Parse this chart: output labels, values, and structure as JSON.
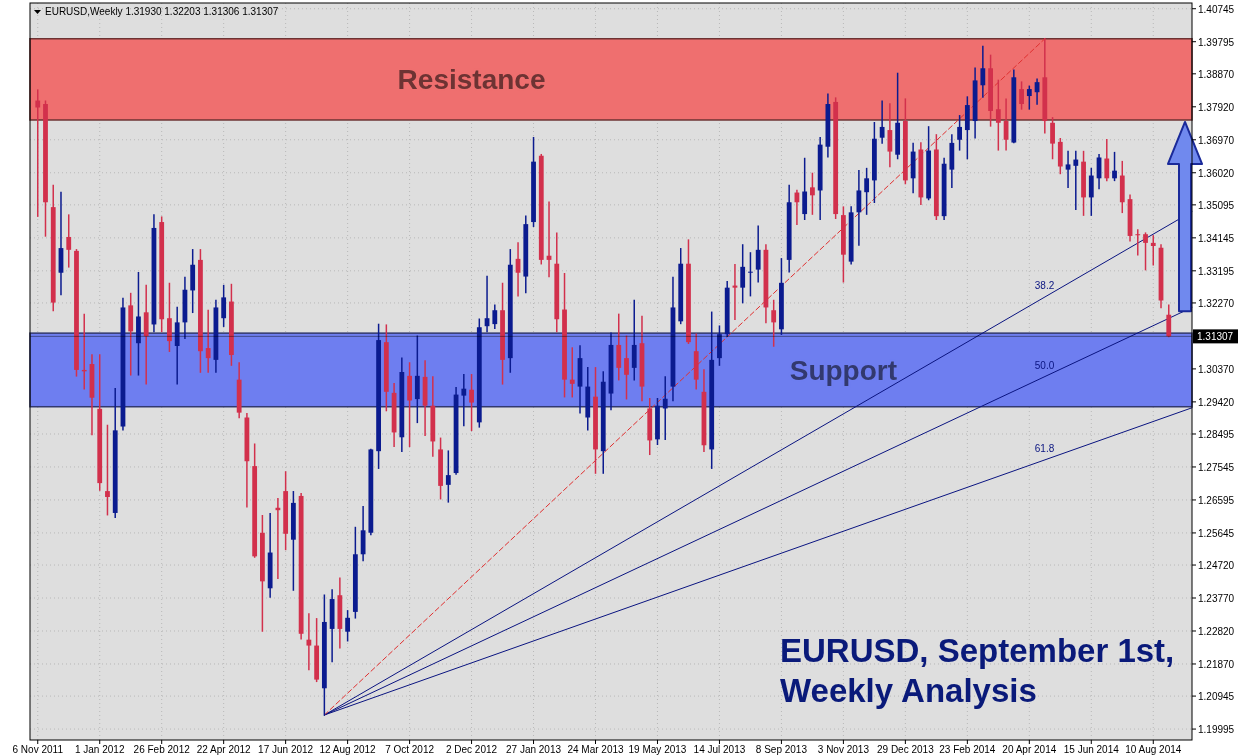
{
  "chart_data": {
    "type": "candlestick",
    "title": "EURUSD, September 1st, Weekly Analysis",
    "subtitle": "EURUSD,Weekly  1.31930 1.32203 1.31306 1.31307",
    "x": [
      "2011-11-06",
      "2011-11-13",
      "2011-11-20",
      "2011-11-27",
      "2011-12-04",
      "2011-12-11",
      "2011-12-18",
      "2011-12-25",
      "2012-01-01",
      "2012-01-08",
      "2012-01-15",
      "2012-01-22",
      "2012-01-29",
      "2012-02-05",
      "2012-02-12",
      "2012-02-19",
      "2012-02-26",
      "2012-03-04",
      "2012-03-11",
      "2012-03-18",
      "2012-03-25",
      "2012-04-01",
      "2012-04-08",
      "2012-04-15",
      "2012-04-22",
      "2012-04-29",
      "2012-05-06",
      "2012-05-13",
      "2012-05-20",
      "2012-05-27",
      "2012-06-03",
      "2012-06-10",
      "2012-06-17",
      "2012-06-24",
      "2012-07-01",
      "2012-07-08",
      "2012-07-15",
      "2012-07-22",
      "2012-07-29",
      "2012-08-05",
      "2012-08-12",
      "2012-08-19",
      "2012-08-26",
      "2012-09-02",
      "2012-09-09",
      "2012-09-16",
      "2012-09-23",
      "2012-09-30",
      "2012-10-07",
      "2012-10-14",
      "2012-10-21",
      "2012-10-28",
      "2012-11-04",
      "2012-11-11",
      "2012-11-18",
      "2012-11-25",
      "2012-12-02",
      "2012-12-09",
      "2012-12-16",
      "2012-12-23",
      "2012-12-30",
      "2013-01-06",
      "2013-01-13",
      "2013-01-20",
      "2013-01-27",
      "2013-02-03",
      "2013-02-10",
      "2013-02-17",
      "2013-02-24",
      "2013-03-03",
      "2013-03-10",
      "2013-03-17",
      "2013-03-24",
      "2013-03-31",
      "2013-04-07",
      "2013-04-14",
      "2013-04-21",
      "2013-04-28",
      "2013-05-05",
      "2013-05-12",
      "2013-05-19",
      "2013-05-26",
      "2013-06-02",
      "2013-06-09",
      "2013-06-16",
      "2013-06-23",
      "2013-06-30",
      "2013-07-07",
      "2013-07-14",
      "2013-07-21",
      "2013-07-28",
      "2013-08-04",
      "2013-08-11",
      "2013-08-18",
      "2013-08-25",
      "2013-09-01",
      "2013-09-08",
      "2013-09-15",
      "2013-09-22",
      "2013-09-29",
      "2013-10-06",
      "2013-10-13",
      "2013-10-20",
      "2013-10-27",
      "2013-11-03",
      "2013-11-10",
      "2013-11-17",
      "2013-11-24",
      "2013-12-01",
      "2013-12-08",
      "2013-12-15",
      "2013-12-22",
      "2013-12-29",
      "2014-01-05",
      "2014-01-12",
      "2014-01-19",
      "2014-01-26",
      "2014-02-02",
      "2014-02-09",
      "2014-02-16",
      "2014-02-23",
      "2014-03-02",
      "2014-03-09",
      "2014-03-16",
      "2014-03-23",
      "2014-03-30",
      "2014-04-06",
      "2014-04-13",
      "2014-04-20",
      "2014-04-27",
      "2014-05-04",
      "2014-05-11",
      "2014-05-18",
      "2014-05-25",
      "2014-06-01",
      "2014-06-08",
      "2014-06-15",
      "2014-06-22",
      "2014-06-29",
      "2014-07-06",
      "2014-07-13",
      "2014-07-20",
      "2014-07-27",
      "2014-08-03",
      "2014-08-10",
      "2014-08-17",
      "2014-08-24"
    ],
    "ohlc": [
      [
        1.381,
        1.384,
        1.3477,
        1.379
      ],
      [
        1.38,
        1.3808,
        1.342,
        1.3517
      ],
      [
        1.3503,
        1.3565,
        1.3205,
        1.3228
      ],
      [
        1.3314,
        1.3545,
        1.3251,
        1.3385
      ],
      [
        1.3417,
        1.348,
        1.3331,
        1.338
      ],
      [
        1.3377,
        1.338,
        1.3017,
        1.3034
      ],
      [
        1.3034,
        1.3194,
        1.298,
        1.303
      ],
      [
        1.3051,
        1.3077,
        1.2848,
        1.2954
      ],
      [
        1.2922,
        1.3077,
        1.2688,
        1.2708
      ],
      [
        1.2685,
        1.2874,
        1.2617,
        1.2668
      ],
      [
        1.2622,
        1.298,
        1.261,
        1.286
      ],
      [
        1.2871,
        1.324,
        1.2862,
        1.3214
      ],
      [
        1.322,
        1.3254,
        1.302,
        1.3145
      ],
      [
        1.3111,
        1.3314,
        1.302,
        1.3188
      ],
      [
        1.32,
        1.3277,
        1.2994,
        1.3131
      ],
      [
        1.3165,
        1.348,
        1.3145,
        1.3443
      ],
      [
        1.346,
        1.3474,
        1.3145,
        1.318
      ],
      [
        1.3183,
        1.3283,
        1.3088,
        1.3117
      ],
      [
        1.3103,
        1.3214,
        1.2994,
        1.3171
      ],
      [
        1.3171,
        1.33,
        1.3125,
        1.3265
      ],
      [
        1.3263,
        1.338,
        1.32,
        1.3337
      ],
      [
        1.3351,
        1.338,
        1.3028,
        1.3088
      ],
      [
        1.3097,
        1.3205,
        1.3028,
        1.3068
      ],
      [
        1.3063,
        1.3234,
        1.3028,
        1.3214
      ],
      [
        1.3183,
        1.3277,
        1.316,
        1.3243
      ],
      [
        1.3231,
        1.328,
        1.3048,
        1.3077
      ],
      [
        1.3006,
        1.3054,
        1.2897,
        1.2911
      ],
      [
        1.2897,
        1.2908,
        1.264,
        1.2771
      ],
      [
        1.2757,
        1.282,
        1.2495,
        1.2497
      ],
      [
        1.2565,
        1.2614,
        1.2282,
        1.2425
      ],
      [
        1.2405,
        1.262,
        1.238,
        1.2508
      ],
      [
        1.2637,
        1.2663,
        1.2434,
        1.263
      ],
      [
        1.2685,
        1.274,
        1.2517,
        1.2562
      ],
      [
        1.2545,
        1.2683,
        1.24,
        1.2651
      ],
      [
        1.2671,
        1.2677,
        1.226,
        1.2274
      ],
      [
        1.2257,
        1.2331,
        1.2171,
        1.224
      ],
      [
        1.224,
        1.2317,
        1.2137,
        1.2142
      ],
      [
        1.2117,
        1.2385,
        1.204,
        1.2308
      ],
      [
        1.2288,
        1.24,
        1.2194,
        1.2374
      ],
      [
        1.2385,
        1.2434,
        1.2234,
        1.2288
      ],
      [
        1.228,
        1.234,
        1.2254,
        1.232
      ],
      [
        1.2337,
        1.258,
        1.232,
        1.2503
      ],
      [
        1.2503,
        1.264,
        1.2485,
        1.2572
      ],
      [
        1.2565,
        1.2805,
        1.256,
        1.2805
      ],
      [
        1.28,
        1.3165,
        1.2751,
        1.312
      ],
      [
        1.3114,
        1.3163,
        1.2917,
        1.2971
      ],
      [
        1.2968,
        1.2994,
        1.2814,
        1.2854
      ],
      [
        1.284,
        1.3068,
        1.28,
        1.3028
      ],
      [
        1.3017,
        1.3054,
        1.2814,
        1.2946
      ],
      [
        1.295,
        1.3131,
        1.2883,
        1.3017
      ],
      [
        1.3014,
        1.306,
        1.2846,
        1.2931
      ],
      [
        1.2931,
        1.3014,
        1.2786,
        1.2828
      ],
      [
        1.2805,
        1.2837,
        1.2663,
        1.27
      ],
      [
        1.2703,
        1.28,
        1.2654,
        1.2731
      ],
      [
        1.2737,
        1.2983,
        1.2734,
        1.2963
      ],
      [
        1.296,
        1.302,
        1.2874,
        1.298
      ],
      [
        1.2977,
        1.302,
        1.286,
        1.294
      ],
      [
        1.2883,
        1.318,
        1.287,
        1.3157
      ],
      [
        1.316,
        1.3303,
        1.3145,
        1.3183
      ],
      [
        1.3166,
        1.322,
        1.3154,
        1.3206
      ],
      [
        1.3206,
        1.3283,
        1.2994,
        1.3063
      ],
      [
        1.3068,
        1.338,
        1.3028,
        1.3337
      ],
      [
        1.3354,
        1.34,
        1.3248,
        1.3314
      ],
      [
        1.3303,
        1.3477,
        1.3257,
        1.3454
      ],
      [
        1.346,
        1.3703,
        1.3448,
        1.3634
      ],
      [
        1.3651,
        1.3654,
        1.334,
        1.3351
      ],
      [
        1.3363,
        1.3517,
        1.3303,
        1.3351
      ],
      [
        1.334,
        1.3428,
        1.3145,
        1.318
      ],
      [
        1.3208,
        1.3311,
        1.2957,
        1.3006
      ],
      [
        1.3006,
        1.3097,
        1.2957,
        1.2994
      ],
      [
        1.2986,
        1.3103,
        1.2911,
        1.3068
      ],
      [
        1.2897,
        1.304,
        1.2862,
        1.2986
      ],
      [
        1.2957,
        1.304,
        1.2737,
        1.2805
      ],
      [
        1.28,
        1.3028,
        1.2737,
        1.3
      ],
      [
        1.2966,
        1.314,
        1.292,
        1.3106
      ],
      [
        1.3106,
        1.3194,
        1.3006,
        1.304
      ],
      [
        1.3068,
        1.3131,
        1.2951,
        1.302
      ],
      [
        1.304,
        1.3234,
        1.3006,
        1.3106
      ],
      [
        1.3111,
        1.3188,
        1.2946,
        1.2986
      ],
      [
        1.2923,
        1.2951,
        1.2791,
        1.2831
      ],
      [
        1.2834,
        1.2951,
        1.282,
        1.2931
      ],
      [
        1.2923,
        1.3014,
        1.2834,
        1.2951
      ],
      [
        1.2986,
        1.33,
        1.2946,
        1.3214
      ],
      [
        1.3174,
        1.3383,
        1.3168,
        1.334
      ],
      [
        1.334,
        1.3408,
        1.3111,
        1.3114
      ],
      [
        1.3088,
        1.3137,
        1.298,
        1.3006
      ],
      [
        1.2971,
        1.3034,
        1.28,
        1.2817
      ],
      [
        1.2805,
        1.32,
        1.2751,
        1.3063
      ],
      [
        1.3068,
        1.316,
        1.3048,
        1.3137
      ],
      [
        1.3137,
        1.3288,
        1.3131,
        1.3271
      ],
      [
        1.3277,
        1.3337,
        1.318,
        1.3271
      ],
      [
        1.3271,
        1.3394,
        1.3228,
        1.3331
      ],
      [
        1.3317,
        1.3371,
        1.3248,
        1.3317
      ],
      [
        1.3323,
        1.3448,
        1.3288,
        1.338
      ],
      [
        1.338,
        1.3394,
        1.3171,
        1.3214
      ],
      [
        1.3206,
        1.3234,
        1.3103,
        1.3171
      ],
      [
        1.3151,
        1.3354,
        1.3137,
        1.3285
      ],
      [
        1.3351,
        1.3565,
        1.3317,
        1.3517
      ],
      [
        1.3545,
        1.3551,
        1.3454,
        1.3517
      ],
      [
        1.3483,
        1.3643,
        1.3468,
        1.3548
      ],
      [
        1.356,
        1.36,
        1.3483,
        1.3537
      ],
      [
        1.3551,
        1.3703,
        1.3468,
        1.3683
      ],
      [
        1.3677,
        1.3828,
        1.3648,
        1.38
      ],
      [
        1.3806,
        1.3817,
        1.3471,
        1.3483
      ],
      [
        1.348,
        1.3503,
        1.3288,
        1.3366
      ],
      [
        1.3346,
        1.3503,
        1.334,
        1.3488
      ],
      [
        1.3488,
        1.3608,
        1.3394,
        1.3551
      ],
      [
        1.3546,
        1.3614,
        1.3483,
        1.3586
      ],
      [
        1.358,
        1.3746,
        1.3517,
        1.37
      ],
      [
        1.3703,
        1.3808,
        1.3688,
        1.3734
      ],
      [
        1.3725,
        1.38,
        1.362,
        1.3663
      ],
      [
        1.3654,
        1.3888,
        1.3643,
        1.3746
      ],
      [
        1.3751,
        1.3814,
        1.3571,
        1.358
      ],
      [
        1.3586,
        1.3686,
        1.3545,
        1.3663
      ],
      [
        1.3669,
        1.3688,
        1.3511,
        1.3531
      ],
      [
        1.3528,
        1.3734,
        1.3525,
        1.3666
      ],
      [
        1.3669,
        1.3711,
        1.3468,
        1.3477
      ],
      [
        1.3477,
        1.3643,
        1.3468,
        1.3628
      ],
      [
        1.3611,
        1.3711,
        1.356,
        1.3688
      ],
      [
        1.3697,
        1.3766,
        1.3668,
        1.3734
      ],
      [
        1.3725,
        1.382,
        1.3643,
        1.3797
      ],
      [
        1.3751,
        1.3903,
        1.3703,
        1.3868
      ],
      [
        1.3854,
        1.3966,
        1.382,
        1.3903
      ],
      [
        1.3903,
        1.394,
        1.3737,
        1.378
      ],
      [
        1.3785,
        1.3868,
        1.3668,
        1.3746
      ],
      [
        1.3751,
        1.3814,
        1.3668,
        1.3697
      ],
      [
        1.3689,
        1.3897,
        1.3689,
        1.3877
      ],
      [
        1.3843,
        1.3863,
        1.3786,
        1.38
      ],
      [
        1.3823,
        1.3851,
        1.3786,
        1.3843
      ],
      [
        1.3834,
        1.3871,
        1.38,
        1.3863
      ],
      [
        1.3877,
        1.3988,
        1.3717,
        1.3751
      ],
      [
        1.3746,
        1.376,
        1.3643,
        1.3686
      ],
      [
        1.3691,
        1.37,
        1.36,
        1.362
      ],
      [
        1.3611,
        1.3663,
        1.356,
        1.3626
      ],
      [
        1.3622,
        1.3663,
        1.3497,
        1.364
      ],
      [
        1.3634,
        1.3663,
        1.348,
        1.3531
      ],
      [
        1.3531,
        1.3614,
        1.348,
        1.3594
      ],
      [
        1.3586,
        1.3654,
        1.3557,
        1.3646
      ],
      [
        1.3643,
        1.3697,
        1.358,
        1.3586
      ],
      [
        1.3586,
        1.366,
        1.358,
        1.3608
      ],
      [
        1.3594,
        1.3634,
        1.3488,
        1.3517
      ],
      [
        1.3526,
        1.3537,
        1.3406,
        1.342
      ],
      [
        1.3425,
        1.3437,
        1.3366,
        1.3422
      ],
      [
        1.3425,
        1.3428,
        1.3323,
        1.34
      ],
      [
        1.34,
        1.342,
        1.3337,
        1.3391
      ],
      [
        1.3386,
        1.3394,
        1.3214,
        1.3234
      ],
      [
        1.3193,
        1.32203,
        1.31306,
        1.31307
      ]
    ],
    "series": [
      {
        "type": "line",
        "name": "38.2",
        "color": "#0a1480",
        "x": [
          "2012-07-22",
          "2014-09-14"
        ],
        "values": [
          1.204,
          1.349
        ]
      },
      {
        "type": "line",
        "name": "50.0",
        "color": "#0a1480",
        "x": [
          "2012-07-22",
          "2014-09-14"
        ],
        "values": [
          1.204,
          1.3214
        ]
      },
      {
        "type": "line",
        "name": "61.8",
        "color": "#0a1480",
        "x": [
          "2012-07-22",
          "2014-09-14"
        ],
        "values": [
          1.204,
          1.2925
        ]
      },
      {
        "type": "line",
        "color": "#e03030",
        "line_style": "dashed",
        "x": [
          "2012-07-22",
          "2014-05-04"
        ],
        "values": [
          1.204,
          1.3988
        ]
      }
    ],
    "xlim": [
      "2011-10-30",
      "2014-09-14"
    ],
    "xticks": [
      {
        "value": "2011-11-06",
        "label": "6 Nov 2011"
      },
      {
        "value": "2012-01-01",
        "label": "1 Jan 2012"
      },
      {
        "value": "2012-02-26",
        "label": "26 Feb 2012"
      },
      {
        "value": "2012-04-22",
        "label": "22 Apr 2012"
      },
      {
        "value": "2012-06-17",
        "label": "17 Jun 2012"
      },
      {
        "value": "2012-08-12",
        "label": "12 Aug 2012"
      },
      {
        "value": "2012-10-07",
        "label": "7 Oct 2012"
      },
      {
        "value": "2012-12-02",
        "label": "2 Dec 2012"
      },
      {
        "value": "2013-01-27",
        "label": "27 Jan 2013"
      },
      {
        "value": "2013-03-24",
        "label": "24 Mar 2013"
      },
      {
        "value": "2013-05-19",
        "label": "19 May 2013"
      },
      {
        "value": "2013-07-14",
        "label": "14 Jul 2013"
      },
      {
        "value": "2013-09-08",
        "label": "8 Sep 2013"
      },
      {
        "value": "2013-11-03",
        "label": "3 Nov 2013"
      },
      {
        "value": "2013-12-29",
        "label": "29 Dec 2013"
      },
      {
        "value": "2014-02-23",
        "label": "23 Feb 2014"
      },
      {
        "value": "2014-04-20",
        "label": "20 Apr 2014"
      },
      {
        "value": "2014-06-15",
        "label": "15 Jun 2014"
      },
      {
        "value": "2014-08-10",
        "label": "10 Aug 2014"
      }
    ],
    "ylim": [
      1.1968,
      1.4091
    ],
    "yticks": [
      {
        "value": 1.19995,
        "label": "1.19995"
      },
      {
        "value": 1.20945,
        "label": "1.20945"
      },
      {
        "value": 1.2187,
        "label": "1.21870"
      },
      {
        "value": 1.2282,
        "label": "1.22820"
      },
      {
        "value": 1.2377,
        "label": "1.23770"
      },
      {
        "value": 1.2472,
        "label": "1.24720"
      },
      {
        "value": 1.25645,
        "label": "1.25645"
      },
      {
        "value": 1.26595,
        "label": "1.26595"
      },
      {
        "value": 1.27545,
        "label": "1.27545"
      },
      {
        "value": 1.28495,
        "label": "1.28495"
      },
      {
        "value": 1.2942,
        "label": "1.29420"
      },
      {
        "value": 1.3037,
        "label": "1.30370"
      },
      {
        "value": 1.3227,
        "label": "1.32270"
      },
      {
        "value": 1.33195,
        "label": "1.33195"
      },
      {
        "value": 1.34145,
        "label": "1.34145"
      },
      {
        "value": 1.35095,
        "label": "1.35095"
      },
      {
        "value": 1.3602,
        "label": "1.36020"
      },
      {
        "value": 1.3697,
        "label": "1.36970"
      },
      {
        "value": 1.3792,
        "label": "1.37920"
      },
      {
        "value": 1.3887,
        "label": "1.38870"
      },
      {
        "value": 1.39795,
        "label": "1.39795"
      },
      {
        "value": 1.40745,
        "label": "1.40745"
      }
    ],
    "bands": [
      {
        "axis": "y",
        "from": 1.3754,
        "to": 1.3988,
        "label": "Resistance",
        "color": "#ef6f6f"
      },
      {
        "axis": "y",
        "from": 1.2928,
        "to": 1.314,
        "label": "Support",
        "color": "#6e7ef0"
      }
    ],
    "ref_lines": [
      {
        "axis": "y",
        "value": 1.31307,
        "label": "1.31307",
        "color": "#000000"
      }
    ],
    "grid": true
  }
}
